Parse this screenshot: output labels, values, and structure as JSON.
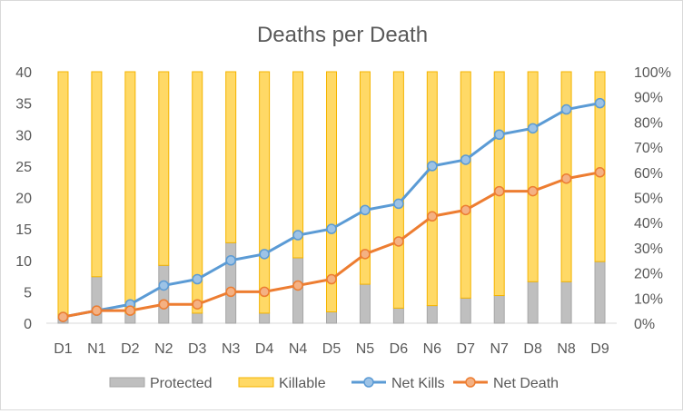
{
  "chart_data": {
    "type": "bar",
    "title": "Deaths per Death",
    "categories": [
      "D1",
      "N1",
      "D2",
      "N2",
      "D3",
      "N3",
      "D4",
      "N4",
      "D5",
      "N5",
      "D6",
      "N6",
      "D7",
      "N7",
      "D8",
      "N8",
      "D9"
    ],
    "y_left": {
      "range": [
        0,
        40
      ],
      "ticks": [
        "0",
        "5",
        "10",
        "15",
        "20",
        "25",
        "30",
        "35",
        "40"
      ]
    },
    "y_right": {
      "range": [
        0,
        1
      ],
      "ticks": [
        "0%",
        "10%",
        "20%",
        "30%",
        "40%",
        "50%",
        "60%",
        "70%",
        "80%",
        "90%",
        "100%"
      ]
    },
    "stacked_bars_percent_axis": true,
    "series": [
      {
        "name": "Protected",
        "kind": "bar",
        "axis": "right",
        "color": "#bfbfbf",
        "border": "#a6a6a6",
        "values": [
          0.02,
          0.185,
          0.04,
          0.23,
          0.04,
          0.32,
          0.04,
          0.26,
          0.045,
          0.155,
          0.06,
          0.07,
          0.1,
          0.11,
          0.165,
          0.165,
          0.245
        ]
      },
      {
        "name": "Killable",
        "kind": "bar",
        "axis": "right",
        "color": "#ffd966",
        "border": "#f4b400",
        "values": [
          0.98,
          0.815,
          0.96,
          0.77,
          0.96,
          0.68,
          0.96,
          0.74,
          0.955,
          0.845,
          0.94,
          0.93,
          0.9,
          0.89,
          0.835,
          0.835,
          0.755
        ]
      },
      {
        "name": "Net Kills",
        "kind": "line",
        "axis": "left",
        "color": "#5b9bd5",
        "marker": "#9dc3e6",
        "values": [
          1,
          2,
          3,
          6,
          7,
          10,
          11,
          14,
          15,
          18,
          19,
          25,
          26,
          30,
          31,
          34,
          35
        ]
      },
      {
        "name": "Net Death",
        "kind": "line",
        "axis": "left",
        "color": "#ed7d31",
        "marker": "#f4b183",
        "values": [
          1,
          2,
          2,
          3,
          3,
          5,
          5,
          6,
          7,
          11,
          13,
          17,
          18,
          21,
          21,
          23,
          24
        ]
      }
    ],
    "legend": "bottom",
    "grid": false
  }
}
